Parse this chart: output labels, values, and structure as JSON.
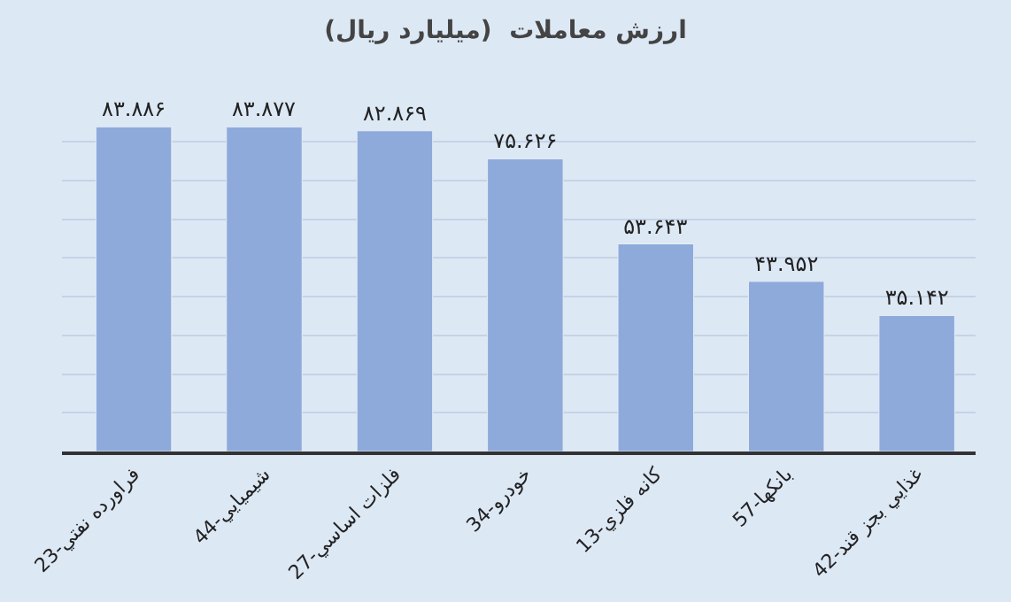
{
  "chart_data": {
    "type": "bar",
    "title": "ارزش معاملات  (میلیارد ریال)",
    "categories": [
      "23-فراورده نفتي",
      "44-شيميايي",
      "27-فلزات اساسي",
      "34-خودرو",
      "13-كانه فلزي",
      "57-بانكها",
      "42-غذايي بجز قند"
    ],
    "values": [
      83.886,
      83.877,
      82.869,
      75.626,
      53.643,
      43.952,
      35.142
    ],
    "value_labels": [
      "۸۳.۸۸۶",
      "۸۳.۸۷۷",
      "۸۲.۸۶۹",
      "۷۵.۶۲۶",
      "۵۳.۶۴۳",
      "۴۳.۹۵۲",
      "۳۵.۱۴۲"
    ],
    "color": "#8eaadb",
    "tick_labels": "x",
    "grid": "y"
  }
}
